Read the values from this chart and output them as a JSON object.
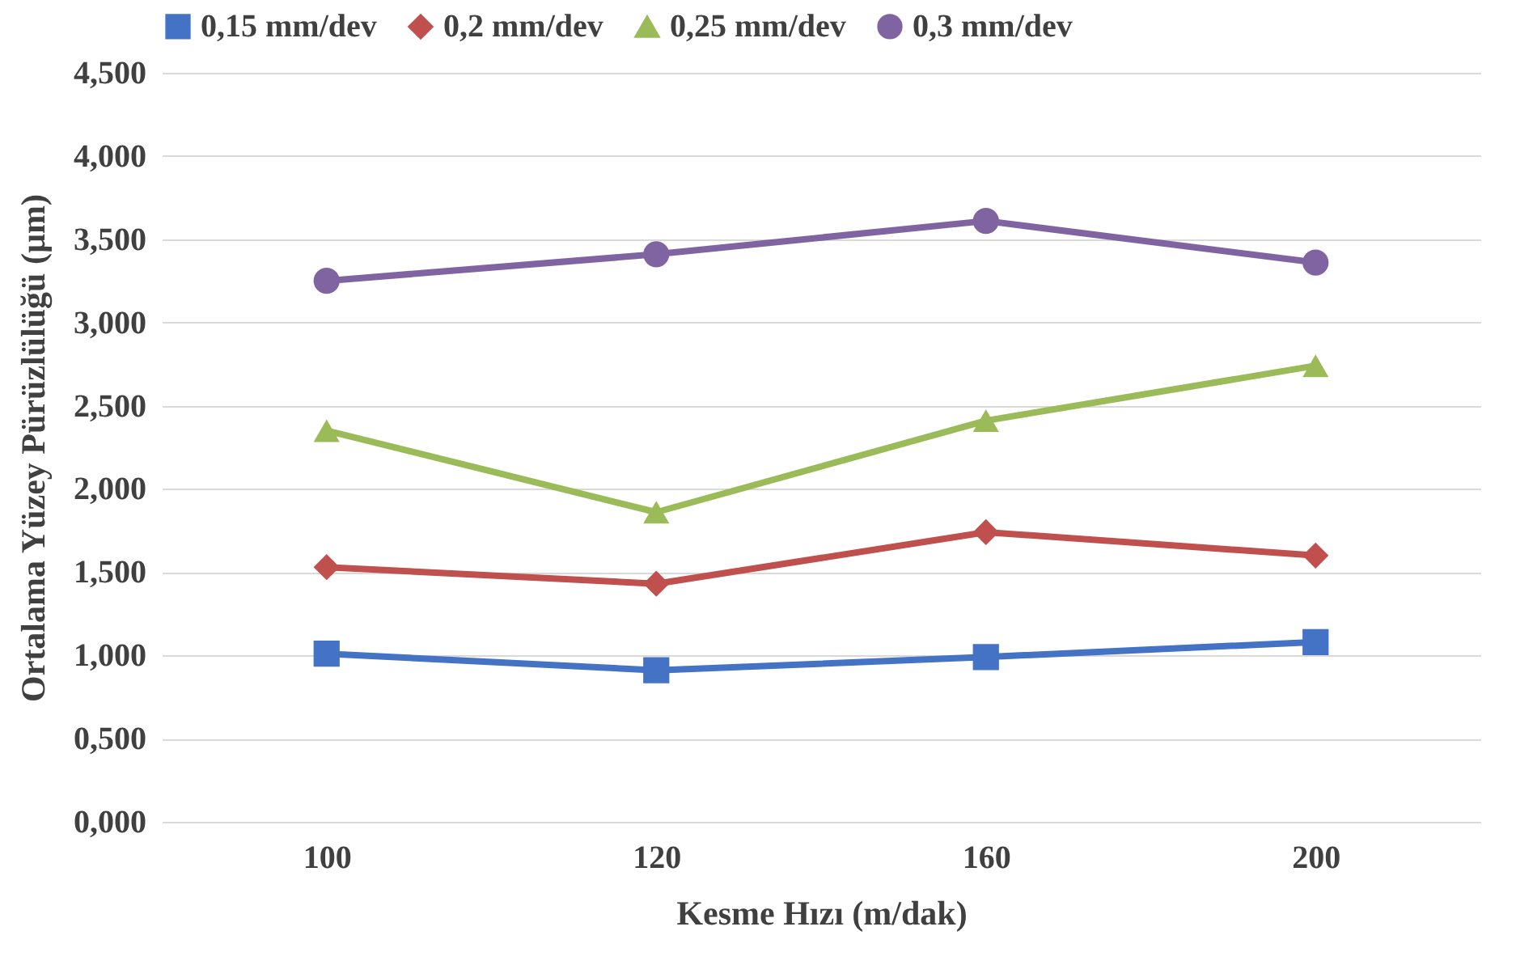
{
  "chart_data": {
    "type": "line",
    "xlabel": "Kesme Hızı (m/dak)",
    "ylabel": "Ortalama Yüzey Pürüzlülüğü (µm)",
    "categories": [
      "100",
      "120",
      "160",
      "200"
    ],
    "series": [
      {
        "name": "0,15 mm/dev",
        "color": "#4472c4",
        "marker": "square",
        "values": [
          1.01,
          0.91,
          0.99,
          1.08
        ]
      },
      {
        "name": "0,2 mm/dev",
        "color": "#c0504d",
        "marker": "diamond",
        "values": [
          1.53,
          1.43,
          1.74,
          1.6
        ]
      },
      {
        "name": "0,25 mm/dev",
        "color": "#9bbb59",
        "marker": "triangle",
        "values": [
          2.35,
          1.86,
          2.41,
          2.74
        ]
      },
      {
        "name": "0,3 mm/dev",
        "color": "#8064a2",
        "marker": "circle",
        "values": [
          3.25,
          3.41,
          3.61,
          3.36
        ]
      }
    ],
    "ylim": [
      0,
      4.5
    ],
    "yticks": [
      {
        "value": 0,
        "label": "0,000"
      },
      {
        "value": 0.5,
        "label": "0,500"
      },
      {
        "value": 1,
        "label": "1,000"
      },
      {
        "value": 1.5,
        "label": "1,500"
      },
      {
        "value": 2,
        "label": "2,000"
      },
      {
        "value": 2.5,
        "label": "2,500"
      },
      {
        "value": 3,
        "label": "3,000"
      },
      {
        "value": 3.5,
        "label": "3,500"
      },
      {
        "value": 4,
        "label": "4,000"
      },
      {
        "value": 4.5,
        "label": "4,500"
      }
    ],
    "grid": "y",
    "legend": "top",
    "line_style": "solid"
  }
}
